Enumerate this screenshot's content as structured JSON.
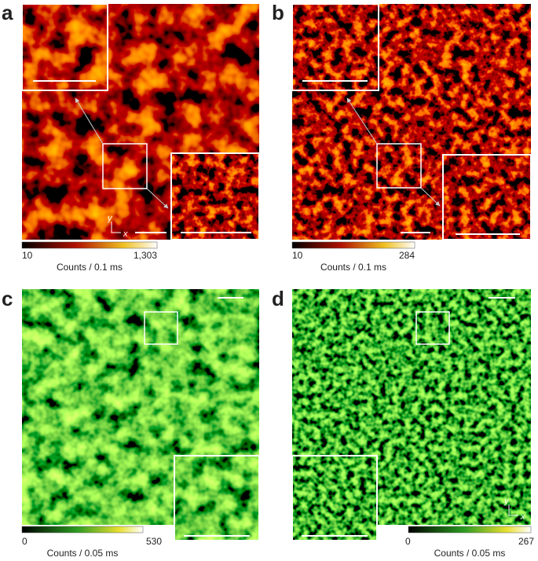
{
  "panels": [
    {
      "label": "a",
      "colorbar": {
        "min": "10",
        "max": "1,303",
        "caption": "Counts / 0.1 ms"
      },
      "axis_y": "y",
      "axis_x": "x"
    },
    {
      "label": "b",
      "colorbar": {
        "min": "10",
        "max": "284",
        "caption": "Counts / 0.1 ms"
      }
    },
    {
      "label": "c",
      "colorbar": {
        "min": "0",
        "max": "530",
        "caption": "Counts / 0.05 ms"
      }
    },
    {
      "label": "d",
      "colorbar": {
        "min": "0",
        "max": "267",
        "caption": "Counts / 0.05 ms"
      },
      "axis_y": "y",
      "axis_x": "x"
    }
  ]
}
